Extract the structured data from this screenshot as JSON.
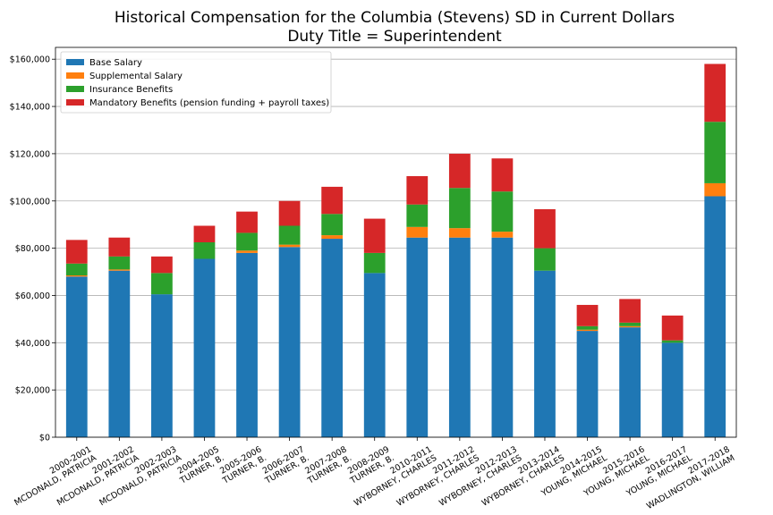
{
  "chart_data": {
    "type": "bar",
    "stacked": true,
    "title": "Historical Compensation for the Columbia (Stevens) SD in Current Dollars",
    "subtitle": "Duty Title = Superintendent",
    "categories": [
      "2000-2001\nMCDONALD, PATRICIA",
      "2001-2002\nMCDONALD, PATRICIA",
      "2002-2003\nMCDONALD, PATRICIA",
      "2004-2005\nTURNER, B.",
      "2005-2006\nTURNER, B.",
      "2006-2007\nTURNER, B.",
      "2007-2008\nTURNER, B.",
      "2008-2009\nTURNER, B.",
      "2010-2011\nWYBORNEY, CHARLES",
      "2011-2012\nWYBORNEY, CHARLES",
      "2012-2013\nWYBORNEY, CHARLES",
      "2013-2014\nWYBORNEY, CHARLES",
      "2014-2015\nYOUNG, MICHAEL",
      "2015-2016\nYOUNG, MICHAEL",
      "2016-2017\nYOUNG, MICHAEL",
      "2017-2018\nWADLINGTON, WILLIAM"
    ],
    "series": [
      {
        "name": "Base Salary",
        "color": "#1f77b4",
        "values": [
          68000,
          70500,
          60500,
          75500,
          78000,
          80500,
          84000,
          69500,
          84500,
          84500,
          84500,
          70500,
          45000,
          46500,
          40000,
          102000
        ]
      },
      {
        "name": "Supplemental Salary",
        "color": "#ff7f0e",
        "values": [
          500,
          500,
          0,
          0,
          1000,
          1000,
          1500,
          0,
          4500,
          4000,
          2500,
          0,
          500,
          500,
          0,
          5500
        ]
      },
      {
        "name": "Insurance Benefits",
        "color": "#2ca02c",
        "values": [
          5000,
          5500,
          9000,
          7000,
          7500,
          8000,
          9000,
          8500,
          9500,
          17000,
          17000,
          9500,
          1500,
          1500,
          1000,
          26000
        ]
      },
      {
        "name": "Mandatory Benefits (pension funding + payroll taxes)",
        "color": "#d62728",
        "values": [
          10000,
          8000,
          7000,
          7000,
          9000,
          10500,
          11500,
          14500,
          12000,
          14500,
          14000,
          16500,
          9000,
          10000,
          10500,
          24500
        ]
      }
    ],
    "ylim": [
      0,
      165000
    ],
    "yticks": [
      0,
      20000,
      40000,
      60000,
      80000,
      100000,
      120000,
      140000,
      160000
    ],
    "ytick_labels": [
      "$0",
      "$20,000",
      "$40,000",
      "$60,000",
      "$80,000",
      "$100,000",
      "$120,000",
      "$140,000",
      "$160,000"
    ],
    "grid": true,
    "legend_position": "top-left",
    "xlabel": "",
    "ylabel": ""
  }
}
